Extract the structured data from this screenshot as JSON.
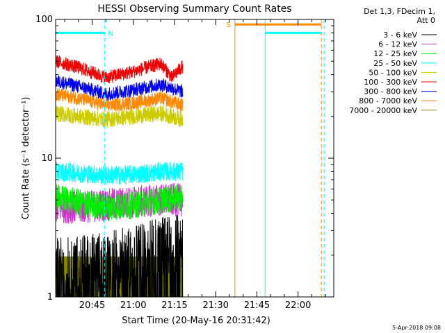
{
  "chart_data": {
    "type": "line",
    "title": "HESSI Observing Summary Count Rates",
    "xlabel": "Start Time (20-May-16 20:31:42)",
    "ylabel": "Count Rate (s⁻¹ detector⁻¹)",
    "yscale": "log",
    "ylim": [
      1,
      100
    ],
    "xlim": [
      "20:31:42",
      "22:13:00"
    ],
    "x_ticks": [
      "20:45",
      "21:00",
      "21:15",
      "21:30",
      "21:45",
      "22:00"
    ],
    "y_ticks": [
      "1",
      "10",
      "100"
    ],
    "grid": false,
    "legend_title": [
      "Det 1,3, FDecim 1,",
      "Att 0"
    ],
    "legend_position": "right",
    "series": [
      {
        "name": "3 - 6 keV",
        "color": "#000000",
        "x": [
          "20:31:42",
          "20:40",
          "20:50",
          "21:00",
          "21:10",
          "21:18"
        ],
        "values": [
          1.6,
          1.7,
          1.8,
          2.0,
          2.3,
          2.5
        ]
      },
      {
        "name": "6 - 12 keV",
        "color": "#cc33cc",
        "x": [
          "20:31:42",
          "20:40",
          "20:50",
          "21:00",
          "21:10",
          "21:18"
        ],
        "values": [
          4.5,
          4.4,
          4.6,
          4.8,
          5.0,
          5.0
        ]
      },
      {
        "name": "12 - 25 keV",
        "color": "#00ee00",
        "x": [
          "20:31:42",
          "20:40",
          "20:50",
          "21:00",
          "21:10",
          "21:18"
        ],
        "values": [
          5.2,
          4.8,
          4.4,
          4.6,
          5.0,
          5.2
        ]
      },
      {
        "name": "25 - 50 keV",
        "color": "#00ffff",
        "x": [
          "20:31:42",
          "20:40",
          "20:50",
          "21:00",
          "21:10",
          "21:18"
        ],
        "values": [
          8.0,
          7.8,
          7.5,
          7.6,
          8.0,
          8.0
        ]
      },
      {
        "name": "50 - 100 keV",
        "color": "#cccc00",
        "x": [
          "20:31:42",
          "20:40",
          "20:50",
          "21:00",
          "21:10",
          "21:18"
        ],
        "values": [
          21,
          20,
          19,
          20,
          21,
          19
        ]
      },
      {
        "name": "100 - 300 keV",
        "color": "#ee0000",
        "x": [
          "20:31:42",
          "20:40",
          "20:50",
          "21:00",
          "21:10",
          "21:14",
          "21:18"
        ],
        "values": [
          50,
          45,
          38,
          42,
          48,
          38,
          46
        ]
      },
      {
        "name": "300 - 800 keV",
        "color": "#0000ee",
        "x": [
          "20:31:42",
          "20:40",
          "20:50",
          "21:00",
          "21:10",
          "21:18"
        ],
        "values": [
          36,
          33,
          29,
          31,
          34,
          30
        ]
      },
      {
        "name": "800 - 7000 keV",
        "color": "#ff8800",
        "x": [
          "20:31:42",
          "20:40",
          "20:50",
          "21:00",
          "21:10",
          "21:18"
        ],
        "values": [
          29,
          27,
          24,
          25,
          27,
          24
        ]
      },
      {
        "name": "7000 - 20000 keV",
        "color": "#888800",
        "x": [
          "20:31:42",
          "20:40",
          "20:50",
          "21:00",
          "21:10",
          "21:18"
        ],
        "values": [
          1.5,
          1.5,
          1.5,
          1.5,
          1.5,
          1.5
        ]
      }
    ],
    "annotations": [
      {
        "label": "N",
        "color": "#00ffff",
        "x_start": "20:31:42",
        "x_end": "20:49:30",
        "y": 80
      },
      {
        "label": "S",
        "color": "#ff8800",
        "x_start": "21:37:00",
        "x_end": "22:08:30",
        "y": 92
      },
      {
        "label": "",
        "color": "#00ffff",
        "x_start": "21:48:00",
        "x_end": "22:08:30",
        "y": 80
      }
    ],
    "vertical_lines": [
      {
        "x": "20:49:30",
        "color": "#00ffff",
        "style": "dashed"
      },
      {
        "x": "21:37:00",
        "color": "#ff8800",
        "style": "solid"
      },
      {
        "x": "21:48:00",
        "color": "#00ffff",
        "style": "solid"
      },
      {
        "x": "22:08:30",
        "color": "#ff8800",
        "style": "dashed"
      },
      {
        "x": "22:09:30",
        "color": "#00ffff",
        "style": "dashed"
      }
    ]
  },
  "footer": {
    "date": "5-Apr-2018 09:08"
  }
}
